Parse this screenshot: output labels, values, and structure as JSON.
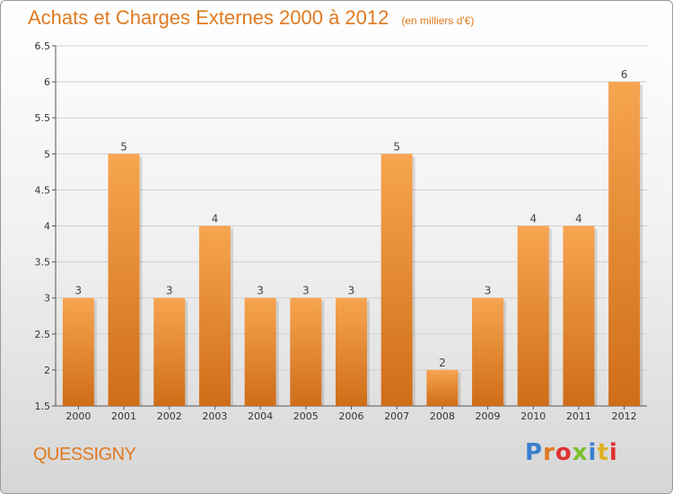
{
  "header": {
    "title": "Achats et Charges Externes 2000 à 2012",
    "unit": "(en milliers d'€)"
  },
  "footer": {
    "commune": "QUESSIGNY",
    "logo": "Proxiti"
  },
  "colors": {
    "accent": "#e07a20",
    "bar_light": "#f7a550",
    "bar_dark": "#cf6d18"
  },
  "chart_data": {
    "type": "bar",
    "title": "Achats et Charges Externes 2000 à 2012",
    "subtitle": "(en milliers d'€)",
    "xlabel": "",
    "ylabel": "",
    "categories": [
      "2000",
      "2001",
      "2002",
      "2003",
      "2004",
      "2005",
      "2006",
      "2007",
      "2008",
      "2009",
      "2010",
      "2011",
      "2012"
    ],
    "values": [
      3,
      5,
      3,
      4,
      3,
      3,
      3,
      5,
      2,
      3,
      4,
      4,
      6
    ],
    "data_labels": [
      "3",
      "5",
      "3",
      "4",
      "3",
      "3",
      "3",
      "5",
      "2",
      "3",
      "4",
      "4",
      "6"
    ],
    "ylim": [
      1.5,
      6.5
    ],
    "yticks": [
      1.5,
      2,
      2.5,
      3,
      3.5,
      4,
      4.5,
      5,
      5.5,
      6,
      6.5
    ],
    "ytick_labels": [
      "1.5",
      "2",
      "2.5",
      "3",
      "3.5",
      "4",
      "4.5",
      "5",
      "5.5",
      "6",
      "6.5"
    ],
    "grid": true,
    "legend": "none"
  }
}
